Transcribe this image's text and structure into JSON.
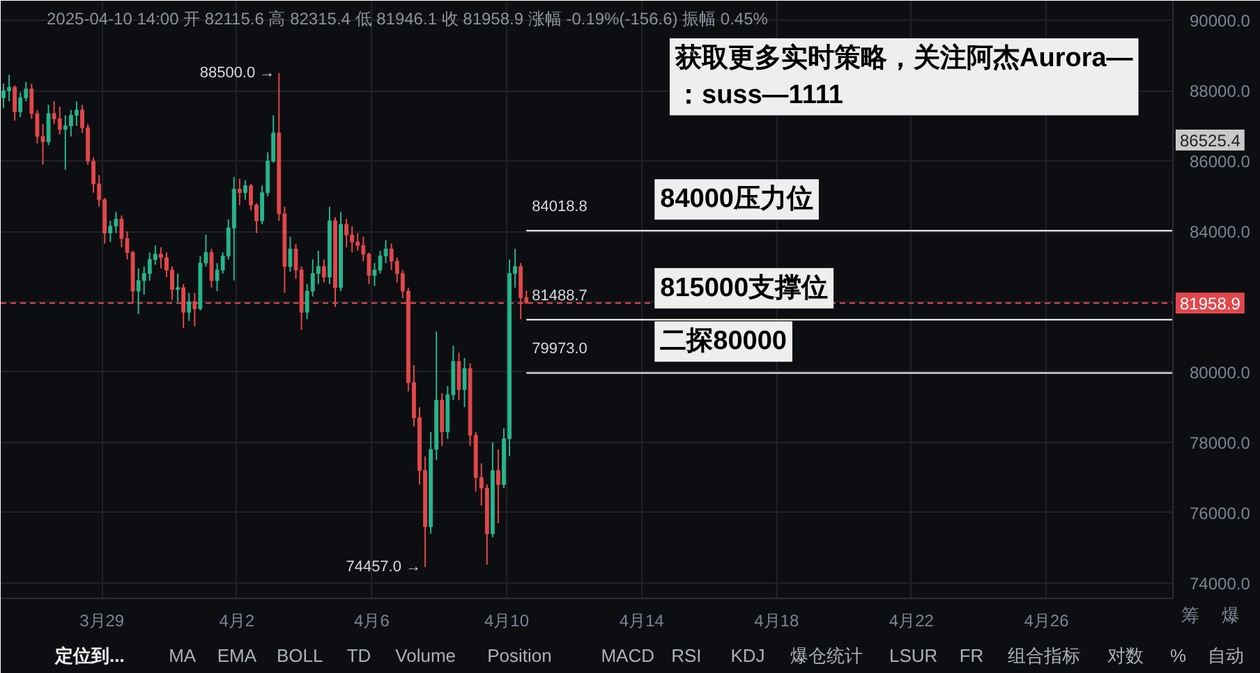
{
  "chart_data": {
    "type": "candlestick",
    "title": "获取更多实时策略，关注阿杰Aurora—\n：suss—1111",
    "subtitle": "2025-04-10 14:00 开 82115.6 高 82315.4 低 81946.1 收 81958.9 涨幅 -0.19%(-156.6) 振幅 0.45%",
    "x": [
      "2025-03-26T02:00",
      "2025-03-26T06:00",
      "2025-03-26T10:00",
      "2025-03-26T14:00",
      "2025-03-26T18:00",
      "2025-03-26T22:00",
      "2025-03-27T02:00",
      "2025-03-27T06:00",
      "2025-03-27T10:00",
      "2025-03-27T14:00",
      "2025-03-27T18:00",
      "2025-03-27T22:00",
      "2025-03-28T02:00",
      "2025-03-28T06:00",
      "2025-03-28T10:00",
      "2025-03-28T14:00",
      "2025-03-28T18:00",
      "2025-03-28T22:00",
      "2025-03-29T02:00",
      "2025-03-29T06:00",
      "2025-03-29T10:00",
      "2025-03-29T14:00",
      "2025-03-29T18:00",
      "2025-03-29T22:00",
      "2025-03-30T02:00",
      "2025-03-30T06:00",
      "2025-03-30T10:00",
      "2025-03-30T14:00",
      "2025-03-30T18:00",
      "2025-03-30T22:00",
      "2025-03-31T02:00",
      "2025-03-31T06:00",
      "2025-03-31T10:00",
      "2025-03-31T14:00",
      "2025-03-31T18:00",
      "2025-03-31T22:00",
      "2025-04-01T02:00",
      "2025-04-01T06:00",
      "2025-04-01T10:00",
      "2025-04-01T14:00",
      "2025-04-01T18:00",
      "2025-04-01T22:00",
      "2025-04-02T02:00",
      "2025-04-02T06:00",
      "2025-04-02T10:00",
      "2025-04-02T14:00",
      "2025-04-02T18:00",
      "2025-04-02T22:00",
      "2025-04-03T02:00",
      "2025-04-03T06:00",
      "2025-04-03T10:00",
      "2025-04-03T14:00",
      "2025-04-03T18:00",
      "2025-04-03T22:00",
      "2025-04-04T02:00",
      "2025-04-04T06:00",
      "2025-04-04T10:00",
      "2025-04-04T14:00",
      "2025-04-04T18:00",
      "2025-04-04T22:00",
      "2025-04-05T02:00",
      "2025-04-05T06:00",
      "2025-04-05T10:00",
      "2025-04-05T14:00",
      "2025-04-05T18:00",
      "2025-04-05T22:00",
      "2025-04-06T02:00",
      "2025-04-06T06:00",
      "2025-04-06T10:00",
      "2025-04-06T14:00",
      "2025-04-06T18:00",
      "2025-04-06T22:00",
      "2025-04-07T02:00",
      "2025-04-07T06:00",
      "2025-04-07T10:00",
      "2025-04-07T14:00",
      "2025-04-07T18:00",
      "2025-04-07T22:00",
      "2025-04-08T02:00",
      "2025-04-08T06:00",
      "2025-04-08T10:00",
      "2025-04-08T14:00",
      "2025-04-08T18:00",
      "2025-04-08T22:00",
      "2025-04-09T02:00",
      "2025-04-09T06:00",
      "2025-04-09T10:00",
      "2025-04-09T14:00",
      "2025-04-09T18:00",
      "2025-04-09T22:00",
      "2025-04-10T02:00",
      "2025-04-10T06:00",
      "2025-04-10T10:00",
      "2025-04-10T14:00"
    ],
    "ohlc": [
      [
        87800,
        88200,
        87500,
        88000
      ],
      [
        88000,
        88450,
        87700,
        88100
      ],
      [
        88100,
        88150,
        87150,
        87400
      ],
      [
        87400,
        87950,
        87250,
        87800
      ],
      [
        87800,
        88250,
        87700,
        88050
      ],
      [
        88050,
        88200,
        87200,
        87350
      ],
      [
        87350,
        87450,
        86500,
        86700
      ],
      [
        86700,
        87050,
        85900,
        86550
      ],
      [
        86550,
        87600,
        86450,
        87350
      ],
      [
        87350,
        87700,
        87050,
        87200
      ],
      [
        87200,
        87550,
        86750,
        86900
      ],
      [
        86900,
        87300,
        85750,
        87000
      ],
      [
        87000,
        87450,
        86700,
        87300
      ],
      [
        87300,
        87700,
        87000,
        87450
      ],
      [
        87450,
        87600,
        86800,
        86950
      ],
      [
        86950,
        87050,
        85900,
        86000
      ],
      [
        86000,
        86100,
        85100,
        85350
      ],
      [
        85350,
        85600,
        84700,
        84900
      ],
      [
        84900,
        84950,
        83650,
        83950
      ],
      [
        83950,
        84300,
        83700,
        84150
      ],
      [
        84150,
        84550,
        83950,
        84350
      ],
      [
        84350,
        84450,
        83550,
        83800
      ],
      [
        83800,
        84000,
        83200,
        83400
      ],
      [
        83400,
        83450,
        81950,
        82300
      ],
      [
        82300,
        82950,
        81650,
        82600
      ],
      [
        82600,
        83000,
        82200,
        82800
      ],
      [
        82800,
        83400,
        82600,
        83200
      ],
      [
        83200,
        83600,
        83050,
        83350
      ],
      [
        83350,
        83550,
        82950,
        83250
      ],
      [
        83250,
        83400,
        82700,
        82900
      ],
      [
        82900,
        83000,
        82050,
        82350
      ],
      [
        82350,
        82800,
        82000,
        82400
      ],
      [
        82400,
        82500,
        81250,
        81700
      ],
      [
        81700,
        82250,
        81450,
        82000
      ],
      [
        82000,
        82250,
        81300,
        81800
      ],
      [
        81800,
        83300,
        81750,
        83100
      ],
      [
        83100,
        83900,
        83000,
        83400
      ],
      [
        83400,
        83500,
        82400,
        82600
      ],
      [
        82600,
        83100,
        82300,
        82900
      ],
      [
        82900,
        83400,
        82800,
        83300
      ],
      [
        83300,
        84350,
        83200,
        84100
      ],
      [
        84100,
        85550,
        82600,
        85200
      ],
      [
        85200,
        85500,
        84750,
        85100
      ],
      [
        85100,
        85450,
        84900,
        85300
      ],
      [
        85300,
        85350,
        84600,
        84750
      ],
      [
        84750,
        84800,
        83950,
        84300
      ],
      [
        84300,
        85300,
        84200,
        85100
      ],
      [
        85100,
        86250,
        85000,
        86000
      ],
      [
        86000,
        87300,
        85950,
        86800
      ],
      [
        86800,
        88500,
        84300,
        84500
      ],
      [
        84500,
        84700,
        82250,
        83000
      ],
      [
        83000,
        83850,
        82850,
        83500
      ],
      [
        83500,
        83650,
        82650,
        82900
      ],
      [
        82900,
        83000,
        81200,
        81700
      ],
      [
        81700,
        82500,
        81500,
        82300
      ],
      [
        82300,
        83200,
        82150,
        82800
      ],
      [
        82800,
        83450,
        82500,
        83000
      ],
      [
        83000,
        83200,
        82550,
        82700
      ],
      [
        82700,
        84700,
        82500,
        84300
      ],
      [
        84300,
        84400,
        81850,
        82400
      ],
      [
        82400,
        84550,
        82300,
        84200
      ],
      [
        84200,
        84350,
        83550,
        83900
      ],
      [
        83900,
        84150,
        83400,
        83700
      ],
      [
        83700,
        83950,
        83450,
        83600
      ],
      [
        83600,
        83850,
        83150,
        83350
      ],
      [
        83350,
        83400,
        82500,
        82750
      ],
      [
        82750,
        83100,
        82450,
        82900
      ],
      [
        82900,
        83450,
        82800,
        83300
      ],
      [
        83300,
        83750,
        83100,
        83500
      ],
      [
        83500,
        83650,
        82900,
        83150
      ],
      [
        83150,
        83250,
        82550,
        82800
      ],
      [
        82800,
        82900,
        82100,
        82300
      ],
      [
        82300,
        82400,
        79450,
        79700
      ],
      [
        79700,
        80200,
        78450,
        78700
      ],
      [
        78700,
        79000,
        76800,
        77200
      ],
      [
        77200,
        77600,
        74457,
        75600
      ],
      [
        75600,
        78300,
        75400,
        77800
      ],
      [
        77800,
        81150,
        77500,
        79200
      ],
      [
        79200,
        79400,
        77900,
        78300
      ],
      [
        78300,
        79600,
        78100,
        79350
      ],
      [
        79350,
        80750,
        79200,
        80300
      ],
      [
        80300,
        80550,
        79200,
        79500
      ],
      [
        79500,
        80400,
        79000,
        80100
      ],
      [
        80100,
        80250,
        77900,
        78200
      ],
      [
        78200,
        78300,
        76600,
        77000
      ],
      [
        77000,
        77400,
        76200,
        76700
      ],
      [
        76700,
        76800,
        74520,
        75400
      ],
      [
        75400,
        78000,
        75300,
        77200
      ],
      [
        77200,
        77800,
        75700,
        76800
      ],
      [
        76800,
        78400,
        76700,
        78100
      ],
      [
        78100,
        83200,
        77600,
        82800
      ],
      [
        82800,
        83500,
        82400,
        83000
      ],
      [
        83000,
        83100,
        81500,
        82115.6
      ],
      [
        82115.6,
        82315.4,
        81946.1,
        81958.9
      ]
    ],
    "colors": [
      "#26b58c",
      "#26b58c",
      "#e2474b",
      "#26b58c",
      "#26b58c",
      "#e2474b",
      "#e2474b",
      "#e2474b",
      "#26b58c",
      "#e2474b",
      "#e2474b",
      "#26b58c",
      "#26b58c",
      "#26b58c",
      "#e2474b",
      "#e2474b",
      "#e2474b",
      "#e2474b",
      "#e2474b",
      "#26b58c",
      "#26b58c",
      "#e2474b",
      "#e2474b",
      "#e2474b",
      "#26b58c",
      "#26b58c",
      "#26b58c",
      "#26b58c",
      "#e2474b",
      "#e2474b",
      "#e2474b",
      "#26b58c",
      "#e2474b",
      "#26b58c",
      "#e2474b",
      "#26b58c",
      "#26b58c",
      "#e2474b",
      "#26b58c",
      "#26b58c",
      "#26b58c",
      "#26b58c",
      "#e2474b",
      "#26b58c",
      "#e2474b",
      "#e2474b",
      "#26b58c",
      "#26b58c",
      "#26b58c",
      "#e2474b",
      "#e2474b",
      "#26b58c",
      "#e2474b",
      "#e2474b",
      "#26b58c",
      "#26b58c",
      "#26b58c",
      "#e2474b",
      "#26b58c",
      "#e2474b",
      "#26b58c",
      "#e2474b",
      "#e2474b",
      "#e2474b",
      "#e2474b",
      "#e2474b",
      "#26b58c",
      "#26b58c",
      "#26b58c",
      "#e2474b",
      "#e2474b",
      "#e2474b",
      "#e2474b",
      "#e2474b",
      "#e2474b",
      "#e2474b",
      "#26b58c",
      "#26b58c",
      "#e2474b",
      "#26b58c",
      "#26b58c",
      "#e2474b",
      "#26b58c",
      "#e2474b",
      "#e2474b",
      "#e2474b",
      "#e2474b",
      "#26b58c",
      "#e2474b",
      "#26b58c",
      "#26b58c",
      "#26b58c",
      "#e2474b",
      "#e2474b"
    ],
    "xlim": [
      "2025-03-26T00:00",
      "2025-04-29T18:00"
    ],
    "xticks": [
      {
        "value": "2025-03-29",
        "label": "3月29"
      },
      {
        "value": "2025-04-02",
        "label": "4月2"
      },
      {
        "value": "2025-04-06",
        "label": "4月6"
      },
      {
        "value": "2025-04-10",
        "label": "4月10"
      },
      {
        "value": "2025-04-14",
        "label": "4月14"
      },
      {
        "value": "2025-04-18",
        "label": "4月18"
      },
      {
        "value": "2025-04-22",
        "label": "4月22"
      },
      {
        "value": "2025-04-26",
        "label": "4月26"
      }
    ],
    "ylim": [
      73560,
      90560
    ],
    "yticks": [
      {
        "value": 74000,
        "label": "74000.0"
      },
      {
        "value": 76000,
        "label": "76000.0"
      },
      {
        "value": 78000,
        "label": "78000.0"
      },
      {
        "value": 80000,
        "label": "80000.0"
      },
      {
        "value": 82000,
        "label": null
      },
      {
        "value": 84000,
        "label": "84000.0"
      },
      {
        "value": 86000,
        "label": "86000.0"
      },
      {
        "value": 88000,
        "label": "88000.0"
      },
      {
        "value": 90000,
        "label": "90000.0"
      }
    ],
    "grid": true,
    "ref_lines": [
      {
        "axis": "y",
        "value": 84018.8,
        "label": "84018.8",
        "color": "#e8e8e8",
        "line_style": "solid"
      },
      {
        "axis": "y",
        "value": 81488.7,
        "label": "81488.7",
        "color": "#e8e8e8",
        "line_style": "solid"
      },
      {
        "axis": "y",
        "value": 79973.0,
        "label": "79973.0",
        "color": "#e8e8e8",
        "line_style": "solid"
      },
      {
        "axis": "y",
        "value": 81958.9,
        "label": "81958.9",
        "color": "#e2474b",
        "line_style": "dashed"
      }
    ],
    "annotations": [
      {
        "text": "88500.0 →",
        "x": "2025-04-03T06:00",
        "y": 88500
      },
      {
        "text": "74457.0 →",
        "x": "2025-04-07T14:00",
        "y": 74457
      },
      "86525.4",
      "84000压力位",
      "815000支撑位",
      "二探80000",
      "定位到...",
      "MA",
      "EMA",
      "BOLL",
      "TD",
      "Volume",
      "Position",
      "MACD",
      "RSI",
      "KDJ",
      "爆仓统计",
      "LSUR",
      "FR",
      "组合指标",
      "对数",
      "%",
      "自动",
      "筹",
      "爆"
    ]
  }
}
